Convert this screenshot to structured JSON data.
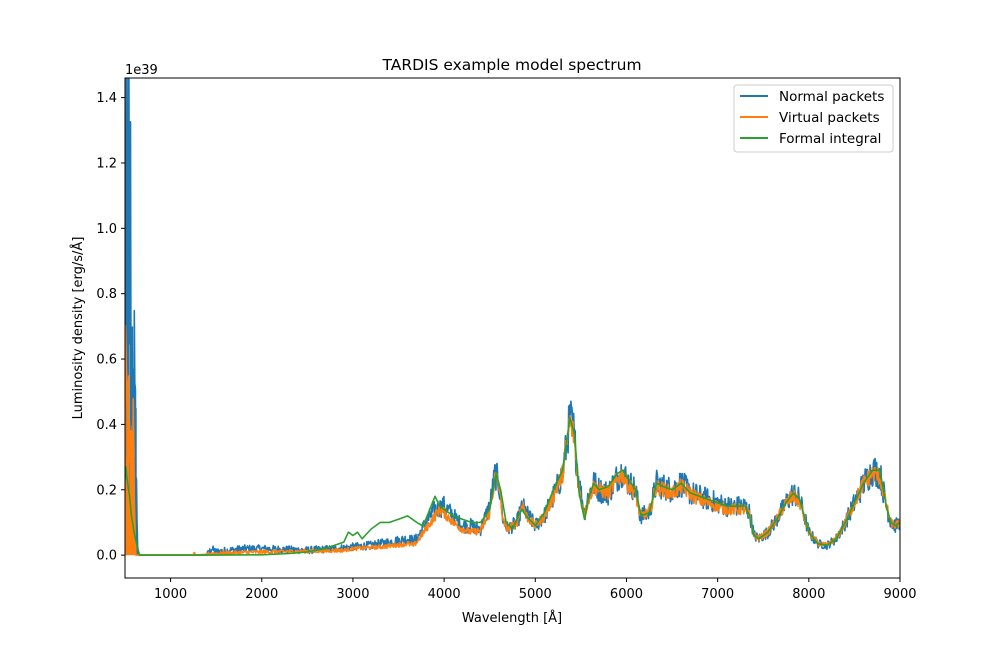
{
  "chart_data": {
    "type": "line",
    "title": "TARDIS example model spectrum",
    "xlabel": "Wavelength [Å]",
    "ylabel": "Luminosity density [erg/s/Å]",
    "y_offset_label": "1e39",
    "xlim": [
      500,
      9000
    ],
    "ylim": [
      -0.07,
      1.46
    ],
    "y_scale_factor": "1e39",
    "xticks": [
      "1000",
      "2000",
      "3000",
      "4000",
      "5000",
      "6000",
      "7000",
      "8000",
      "9000"
    ],
    "yticks": [
      "0.0",
      "0.2",
      "0.4",
      "0.6",
      "0.8",
      "1.0",
      "1.2",
      "1.4"
    ],
    "grid": false,
    "legend_position": "top-right",
    "series": [
      {
        "name": "Normal packets",
        "color": "#1f77b4",
        "noisy": true,
        "points": [
          [
            500,
            0.2
          ],
          [
            510,
            0.55
          ],
          [
            520,
            1.37
          ],
          [
            530,
            0.4
          ],
          [
            540,
            1.39
          ],
          [
            550,
            0.3
          ],
          [
            560,
            1.03
          ],
          [
            570,
            0.35
          ],
          [
            580,
            0.7
          ],
          [
            590,
            0.25
          ],
          [
            600,
            0.62
          ],
          [
            610,
            0.3
          ],
          [
            620,
            0.45
          ],
          [
            630,
            0.1
          ],
          [
            640,
            0.02
          ],
          [
            650,
            0.0
          ],
          [
            700,
            0.0
          ],
          [
            1000,
            0.0
          ],
          [
            1400,
            0.0
          ],
          [
            1450,
            0.02
          ],
          [
            1500,
            0.01
          ],
          [
            1800,
            0.02
          ],
          [
            2000,
            0.02
          ],
          [
            2500,
            0.015
          ],
          [
            2800,
            0.02
          ],
          [
            3000,
            0.025
          ],
          [
            3200,
            0.03
          ],
          [
            3400,
            0.04
          ],
          [
            3600,
            0.05
          ],
          [
            3660,
            0.045
          ],
          [
            3700,
            0.05
          ],
          [
            3800,
            0.1
          ],
          [
            3900,
            0.14
          ],
          [
            4000,
            0.15
          ],
          [
            4100,
            0.12
          ],
          [
            4200,
            0.09
          ],
          [
            4300,
            0.09
          ],
          [
            4400,
            0.08
          ],
          [
            4500,
            0.15
          ],
          [
            4560,
            0.25
          ],
          [
            4600,
            0.22
          ],
          [
            4650,
            0.1
          ],
          [
            4700,
            0.08
          ],
          [
            4800,
            0.1
          ],
          [
            4860,
            0.15
          ],
          [
            4900,
            0.13
          ],
          [
            5000,
            0.09
          ],
          [
            5100,
            0.12
          ],
          [
            5200,
            0.18
          ],
          [
            5300,
            0.25
          ],
          [
            5380,
            0.42
          ],
          [
            5420,
            0.38
          ],
          [
            5480,
            0.22
          ],
          [
            5540,
            0.13
          ],
          [
            5580,
            0.18
          ],
          [
            5640,
            0.22
          ],
          [
            5700,
            0.2
          ],
          [
            5800,
            0.19
          ],
          [
            5900,
            0.24
          ],
          [
            5960,
            0.26
          ],
          [
            6000,
            0.23
          ],
          [
            6100,
            0.2
          ],
          [
            6150,
            0.12
          ],
          [
            6250,
            0.13
          ],
          [
            6330,
            0.22
          ],
          [
            6400,
            0.21
          ],
          [
            6500,
            0.2
          ],
          [
            6600,
            0.22
          ],
          [
            6700,
            0.19
          ],
          [
            6800,
            0.18
          ],
          [
            6900,
            0.17
          ],
          [
            7000,
            0.16
          ],
          [
            7100,
            0.15
          ],
          [
            7200,
            0.15
          ],
          [
            7300,
            0.15
          ],
          [
            7350,
            0.13
          ],
          [
            7400,
            0.06
          ],
          [
            7450,
            0.05
          ],
          [
            7550,
            0.07
          ],
          [
            7650,
            0.11
          ],
          [
            7750,
            0.16
          ],
          [
            7830,
            0.19
          ],
          [
            7900,
            0.17
          ],
          [
            8000,
            0.07
          ],
          [
            8100,
            0.035
          ],
          [
            8200,
            0.03
          ],
          [
            8300,
            0.05
          ],
          [
            8400,
            0.1
          ],
          [
            8500,
            0.16
          ],
          [
            8600,
            0.22
          ],
          [
            8700,
            0.26
          ],
          [
            8780,
            0.25
          ],
          [
            8850,
            0.15
          ],
          [
            8900,
            0.1
          ],
          [
            8950,
            0.09
          ],
          [
            9000,
            0.1
          ]
        ]
      },
      {
        "name": "Virtual packets",
        "color": "#ff7f0e",
        "noisy": true,
        "points": [
          [
            500,
            0.2
          ],
          [
            510,
            0.64
          ],
          [
            520,
            0.3
          ],
          [
            530,
            0.48
          ],
          [
            540,
            0.55
          ],
          [
            550,
            0.2
          ],
          [
            560,
            0.3
          ],
          [
            570,
            0.25
          ],
          [
            580,
            0.2
          ],
          [
            590,
            0.3
          ],
          [
            600,
            0.15
          ],
          [
            610,
            0.05
          ],
          [
            620,
            0.0
          ],
          [
            700,
            0.0
          ],
          [
            1000,
            0.0
          ],
          [
            1250,
            0.0
          ],
          [
            1260,
            0.01
          ],
          [
            1270,
            0.0
          ],
          [
            1500,
            0.005
          ],
          [
            2000,
            0.01
          ],
          [
            2500,
            0.012
          ],
          [
            2900,
            0.015
          ],
          [
            3000,
            0.02
          ],
          [
            3300,
            0.025
          ],
          [
            3600,
            0.035
          ],
          [
            3660,
            0.03
          ],
          [
            3700,
            0.04
          ],
          [
            3800,
            0.08
          ],
          [
            3900,
            0.12
          ],
          [
            3950,
            0.14
          ],
          [
            4000,
            0.13
          ],
          [
            4100,
            0.1
          ],
          [
            4200,
            0.08
          ],
          [
            4300,
            0.07
          ],
          [
            4400,
            0.075
          ],
          [
            4500,
            0.13
          ],
          [
            4560,
            0.24
          ],
          [
            4600,
            0.22
          ],
          [
            4650,
            0.1
          ],
          [
            4700,
            0.08
          ],
          [
            4800,
            0.1
          ],
          [
            4860,
            0.16
          ],
          [
            4900,
            0.12
          ],
          [
            5000,
            0.09
          ],
          [
            5100,
            0.12
          ],
          [
            5200,
            0.18
          ],
          [
            5300,
            0.25
          ],
          [
            5380,
            0.41
          ],
          [
            5420,
            0.37
          ],
          [
            5480,
            0.2
          ],
          [
            5540,
            0.12
          ],
          [
            5580,
            0.17
          ],
          [
            5640,
            0.21
          ],
          [
            5700,
            0.2
          ],
          [
            5800,
            0.19
          ],
          [
            5900,
            0.23
          ],
          [
            5960,
            0.25
          ],
          [
            6000,
            0.22
          ],
          [
            6100,
            0.19
          ],
          [
            6150,
            0.12
          ],
          [
            6250,
            0.13
          ],
          [
            6330,
            0.21
          ],
          [
            6400,
            0.2
          ],
          [
            6500,
            0.19
          ],
          [
            6600,
            0.21
          ],
          [
            6700,
            0.19
          ],
          [
            6800,
            0.17
          ],
          [
            6900,
            0.16
          ],
          [
            7000,
            0.15
          ],
          [
            7100,
            0.14
          ],
          [
            7200,
            0.14
          ],
          [
            7300,
            0.14
          ],
          [
            7350,
            0.12
          ],
          [
            7400,
            0.06
          ],
          [
            7450,
            0.05
          ],
          [
            7550,
            0.07
          ],
          [
            7650,
            0.11
          ],
          [
            7750,
            0.16
          ],
          [
            7830,
            0.18
          ],
          [
            7900,
            0.16
          ],
          [
            8000,
            0.07
          ],
          [
            8100,
            0.035
          ],
          [
            8200,
            0.03
          ],
          [
            8300,
            0.05
          ],
          [
            8400,
            0.1
          ],
          [
            8500,
            0.16
          ],
          [
            8600,
            0.22
          ],
          [
            8700,
            0.25
          ],
          [
            8780,
            0.24
          ],
          [
            8850,
            0.15
          ],
          [
            8900,
            0.1
          ],
          [
            8950,
            0.09
          ],
          [
            9000,
            0.1
          ]
        ]
      },
      {
        "name": "Formal integral",
        "color": "#2ca02c",
        "noisy": false,
        "points": [
          [
            500,
            0.23
          ],
          [
            510,
            0.27
          ],
          [
            520,
            0.24
          ],
          [
            530,
            0.22
          ],
          [
            540,
            0.2
          ],
          [
            550,
            0.18
          ],
          [
            570,
            0.12
          ],
          [
            600,
            0.07
          ],
          [
            630,
            0.03
          ],
          [
            660,
            0.0
          ],
          [
            700,
            0.0
          ],
          [
            1000,
            0.0
          ],
          [
            1500,
            0.0
          ],
          [
            2000,
            0.001
          ],
          [
            2300,
            0.005
          ],
          [
            2500,
            0.01
          ],
          [
            2700,
            0.02
          ],
          [
            2800,
            0.03
          ],
          [
            2900,
            0.04
          ],
          [
            2950,
            0.07
          ],
          [
            3000,
            0.06
          ],
          [
            3050,
            0.07
          ],
          [
            3100,
            0.05
          ],
          [
            3200,
            0.08
          ],
          [
            3300,
            0.1
          ],
          [
            3400,
            0.1
          ],
          [
            3500,
            0.11
          ],
          [
            3600,
            0.12
          ],
          [
            3650,
            0.11
          ],
          [
            3700,
            0.1
          ],
          [
            3760,
            0.09
          ],
          [
            3800,
            0.11
          ],
          [
            3900,
            0.18
          ],
          [
            3950,
            0.15
          ],
          [
            4000,
            0.14
          ],
          [
            4100,
            0.12
          ],
          [
            4200,
            0.11
          ],
          [
            4300,
            0.1
          ],
          [
            4400,
            0.1
          ],
          [
            4500,
            0.14
          ],
          [
            4570,
            0.25
          ],
          [
            4620,
            0.2
          ],
          [
            4680,
            0.1
          ],
          [
            4750,
            0.08
          ],
          [
            4850,
            0.14
          ],
          [
            4900,
            0.12
          ],
          [
            5000,
            0.09
          ],
          [
            5100,
            0.13
          ],
          [
            5200,
            0.2
          ],
          [
            5300,
            0.26
          ],
          [
            5380,
            0.42
          ],
          [
            5430,
            0.37
          ],
          [
            5480,
            0.19
          ],
          [
            5540,
            0.11
          ],
          [
            5580,
            0.17
          ],
          [
            5640,
            0.22
          ],
          [
            5700,
            0.2
          ],
          [
            5800,
            0.21
          ],
          [
            5900,
            0.25
          ],
          [
            5960,
            0.26
          ],
          [
            6000,
            0.24
          ],
          [
            6100,
            0.2
          ],
          [
            6160,
            0.12
          ],
          [
            6250,
            0.13
          ],
          [
            6330,
            0.22
          ],
          [
            6400,
            0.21
          ],
          [
            6500,
            0.2
          ],
          [
            6600,
            0.22
          ],
          [
            6700,
            0.19
          ],
          [
            6800,
            0.18
          ],
          [
            6900,
            0.17
          ],
          [
            7000,
            0.16
          ],
          [
            7100,
            0.15
          ],
          [
            7200,
            0.15
          ],
          [
            7300,
            0.15
          ],
          [
            7350,
            0.12
          ],
          [
            7400,
            0.06
          ],
          [
            7450,
            0.05
          ],
          [
            7550,
            0.07
          ],
          [
            7650,
            0.11
          ],
          [
            7750,
            0.16
          ],
          [
            7830,
            0.19
          ],
          [
            7900,
            0.17
          ],
          [
            8000,
            0.07
          ],
          [
            8100,
            0.035
          ],
          [
            8200,
            0.03
          ],
          [
            8300,
            0.05
          ],
          [
            8400,
            0.1
          ],
          [
            8500,
            0.16
          ],
          [
            8600,
            0.22
          ],
          [
            8700,
            0.26
          ],
          [
            8780,
            0.26
          ],
          [
            8850,
            0.15
          ],
          [
            8900,
            0.1
          ],
          [
            8950,
            0.09
          ],
          [
            9000,
            0.1
          ]
        ]
      }
    ]
  }
}
